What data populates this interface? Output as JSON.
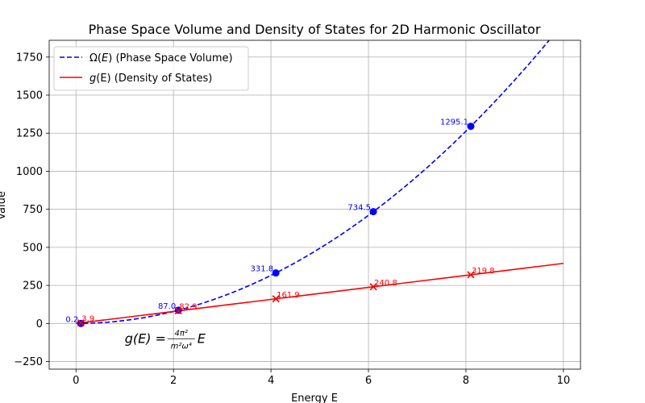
{
  "chart_data": {
    "type": "line",
    "title": "Phase Space Volume and Density of States for 2D Harmonic Oscillator",
    "xlabel": "Energy E",
    "ylabel": "Value",
    "xlim": [
      -0.55,
      10.35
    ],
    "ylim": [
      -300,
      1860
    ],
    "xticks": [
      0,
      2,
      4,
      6,
      8,
      10
    ],
    "yticks": [
      -250,
      0,
      250,
      500,
      750,
      1000,
      1250,
      1500,
      1750
    ],
    "grid": true,
    "legend_position": "top-left",
    "series": [
      {
        "name": "Ω(E) (Phase Space Volume)",
        "legend_prefix": "Ω(",
        "legend_var": "E",
        "legend_suffix": ") (Phase Space Volume)",
        "color": "#0000ff",
        "style": "dashed",
        "curve": "quadratic",
        "coefficient": 19.74,
        "x_range": [
          0,
          10
        ],
        "marker": "circle",
        "points": [
          {
            "x": 0.1,
            "y": 0.2,
            "label": "0.2"
          },
          {
            "x": 2.1,
            "y": 87.0,
            "label": "87.0"
          },
          {
            "x": 4.1,
            "y": 331.8,
            "label": "331.8"
          },
          {
            "x": 6.1,
            "y": 734.5,
            "label": "734.5"
          },
          {
            "x": 8.1,
            "y": 1295.1,
            "label": "1295.1"
          }
        ]
      },
      {
        "name": "g(E) (Density of States)",
        "legend_prefix": "",
        "legend_var": "g",
        "legend_suffix": "(E) (Density of States)",
        "color": "#ff0000",
        "style": "solid",
        "curve": "linear",
        "coefficient": 39.48,
        "x_range": [
          0,
          10
        ],
        "marker": "x",
        "points": [
          {
            "x": 0.1,
            "y": 3.9,
            "label": "3.9"
          },
          {
            "x": 2.1,
            "y": 82.9,
            "label": "82.9"
          },
          {
            "x": 4.1,
            "y": 161.9,
            "label": "161.9"
          },
          {
            "x": 6.1,
            "y": 240.8,
            "label": "240.8"
          },
          {
            "x": 8.1,
            "y": 319.8,
            "label": "319.8"
          }
        ]
      }
    ],
    "annotation": {
      "lhs": "g(E) =",
      "numerator": "4π²",
      "denominator": "m²ω⁴",
      "rhs": "E",
      "x": 1.0,
      "y": -95
    }
  }
}
